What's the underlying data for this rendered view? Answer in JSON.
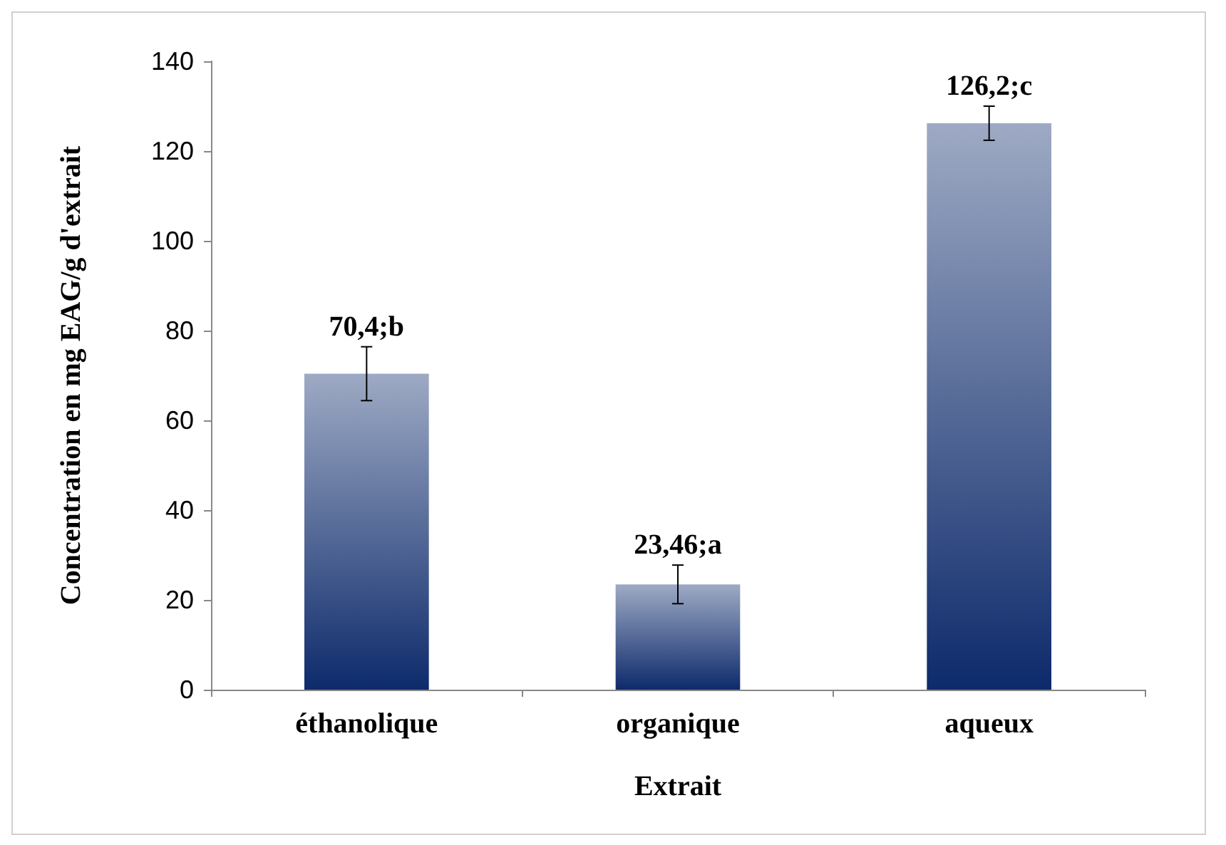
{
  "chart_data": {
    "type": "bar",
    "xlabel": "Extrait",
    "ylabel": "Concentration en mg EAG/g d'extrait",
    "categories": [
      "éthanolique",
      "organique",
      "aqueux"
    ],
    "values": [
      70.4,
      23.46,
      126.2
    ],
    "errors": [
      6,
      4.3,
      3.8
    ],
    "value_labels": [
      "70,4;b",
      "23,46;a",
      "126,2;c"
    ],
    "color": "#0d2a6b",
    "ylim": [
      0,
      140
    ],
    "yticks": [
      0,
      20,
      40,
      60,
      80,
      100,
      120,
      140
    ],
    "grid": false
  }
}
